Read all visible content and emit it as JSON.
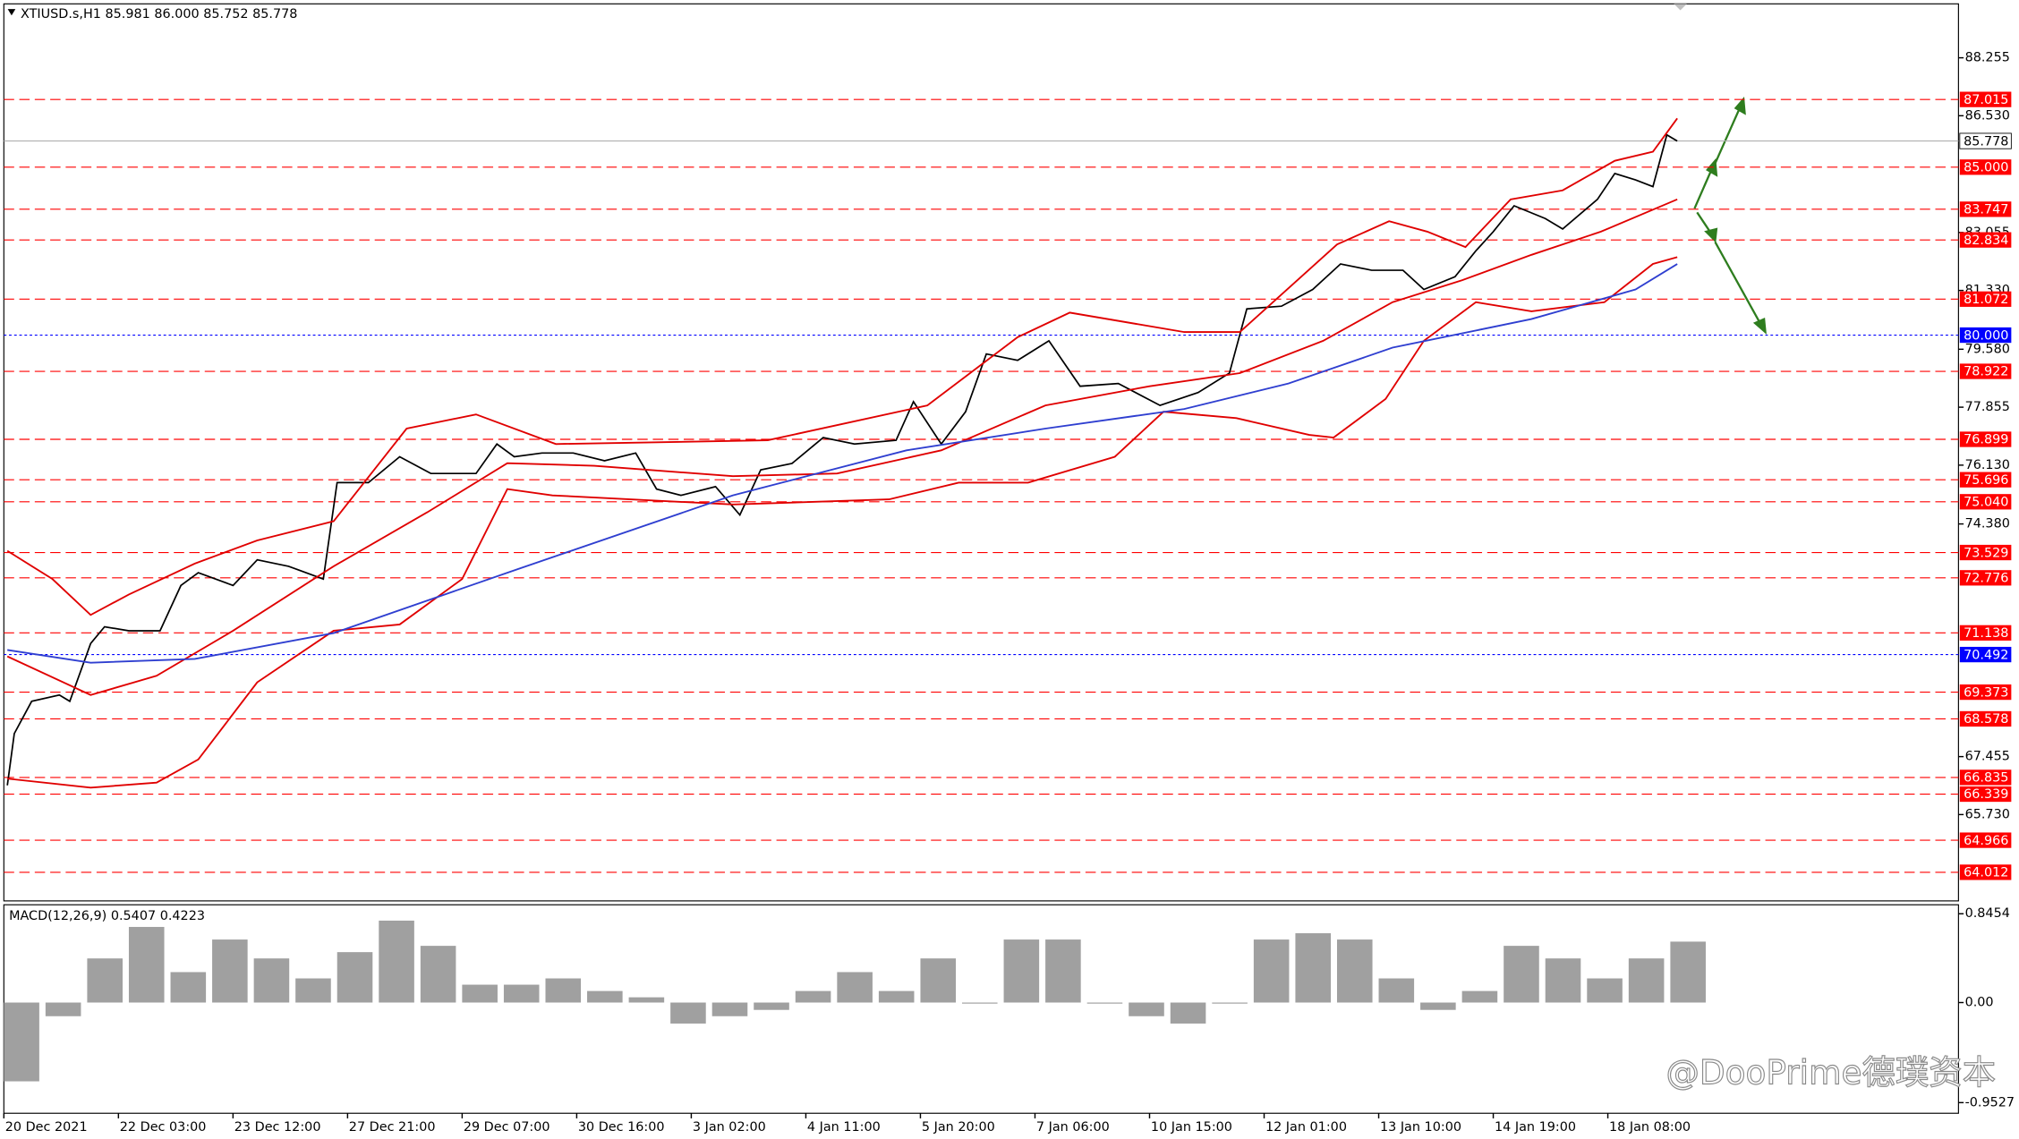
{
  "chart_data": [
    {
      "type": "line",
      "title": "XTIUSD.s,H1  85.981 86.000 85.752 85.778",
      "xlim": [
        0,
        563
      ],
      "ylim": [
        63.16,
        89.86
      ],
      "xticks": [
        {
          "value": 0,
          "label": "20 Dec 2021"
        },
        {
          "value": 33,
          "label": "22 Dec 03:00"
        },
        {
          "value": 66,
          "label": "23 Dec 12:00"
        },
        {
          "value": 99,
          "label": "27 Dec 21:00"
        },
        {
          "value": 132,
          "label": "29 Dec 07:00"
        },
        {
          "value": 165,
          "label": "30 Dec 16:00"
        },
        {
          "value": 198,
          "label": "3 Jan 02:00"
        },
        {
          "value": 231,
          "label": "4 Jan 11:00"
        },
        {
          "value": 264,
          "label": "5 Jan 20:00"
        },
        {
          "value": 297,
          "label": "7 Jan 06:00"
        },
        {
          "value": 330,
          "label": "10 Jan 15:00"
        },
        {
          "value": 363,
          "label": "12 Jan 01:00"
        },
        {
          "value": 396,
          "label": "13 Jan 10:00"
        },
        {
          "value": 429,
          "label": "14 Jan 19:00"
        },
        {
          "value": 462,
          "label": "18 Jan 08:00"
        }
      ],
      "yticks": [
        88.255,
        {
          "value": 86.53,
          "label": "86.530"
        },
        83.055,
        {
          "value": 81.33,
          "label": "81.330"
        },
        {
          "value": 79.58,
          "label": "79.580"
        },
        77.855,
        {
          "value": 76.13,
          "label": "76.130"
        },
        {
          "value": 74.38,
          "label": "74.380"
        },
        67.455,
        {
          "value": 65.73,
          "label": "65.730"
        }
      ],
      "levels": [
        87.015,
        {
          "value": 85,
          "label": "85.000"
        },
        83.747,
        82.834,
        81.072,
        78.922,
        76.899,
        75.696,
        {
          "value": 75.04,
          "label": "75.040"
        },
        73.529,
        72.776,
        71.138,
        69.373,
        68.578,
        66.835,
        66.339,
        64.966,
        64.012
      ],
      "level_color": "#ff0000",
      "blue_levels": [
        {
          "value": 80,
          "label": "80.000"
        },
        70.492
      ],
      "blue_level_color": "#0000ff",
      "last_price": 85.778,
      "series": [
        {
          "color": "#000000",
          "x": [
            1,
            3,
            8,
            16,
            19,
            25,
            29,
            36,
            45,
            51,
            56,
            66,
            73,
            82,
            92,
            96,
            105,
            114,
            123,
            136,
            142,
            147,
            155,
            164,
            173,
            182,
            188,
            195,
            205,
            212,
            218,
            227,
            236,
            245,
            257,
            262,
            270,
            277,
            283,
            292,
            301,
            310,
            321,
            333,
            344,
            353,
            358,
            368,
            377,
            385,
            394,
            403,
            409,
            418,
            424,
            429,
            435,
            444,
            449,
            459,
            464,
            470,
            475,
            479,
            482
          ],
          "values": [
            66.6,
            68.14,
            69.1,
            69.29,
            69.1,
            70.82,
            71.32,
            71.2,
            71.2,
            72.55,
            72.93,
            72.55,
            73.31,
            73.12,
            72.74,
            75.61,
            75.61,
            76.38,
            75.88,
            75.88,
            76.76,
            76.38,
            76.49,
            76.49,
            76.26,
            76.49,
            75.42,
            75.23,
            75.49,
            74.65,
            75.99,
            76.18,
            76.95,
            76.76,
            76.87,
            78.02,
            76.76,
            77.72,
            79.44,
            79.25,
            79.83,
            78.48,
            78.56,
            77.91,
            78.29,
            78.87,
            80.78,
            80.86,
            81.36,
            82.12,
            81.93,
            81.93,
            81.36,
            81.74,
            82.51,
            83.08,
            83.85,
            83.47,
            83.16,
            84.04,
            84.81,
            84.62,
            84.42,
            85.96,
            85.778
          ]
        },
        {
          "color": "#e00000",
          "x": [
            1,
            14,
            25,
            36,
            55,
            73,
            95,
            116,
            136,
            159,
            220,
            266,
            292,
            307,
            340,
            356,
            384,
            399,
            410,
            421,
            434,
            449,
            464,
            475,
            482
          ],
          "values": [
            73.58,
            72.74,
            71.67,
            72.28,
            73.2,
            73.89,
            74.46,
            77.22,
            77.64,
            76.76,
            76.87,
            77.91,
            79.94,
            80.67,
            80.09,
            80.09,
            82.7,
            83.39,
            83.08,
            82.62,
            84.04,
            84.31,
            85.19,
            85.46,
            86.45
          ]
        },
        {
          "color": "#e00000",
          "x": [
            1,
            25,
            44,
            66,
            95,
            122,
            145,
            170,
            210,
            240,
            270,
            300,
            330,
            356,
            380,
            400,
            420,
            440,
            460,
            482
          ],
          "values": [
            70.44,
            69.29,
            69.86,
            71.2,
            73.12,
            74.73,
            76.19,
            76.11,
            75.8,
            75.88,
            76.57,
            77.91,
            78.48,
            78.87,
            79.83,
            80.98,
            81.63,
            82.39,
            83.08,
            84.04
          ]
        },
        {
          "color": "#e00000",
          "x": [
            1,
            25,
            44,
            56,
            73,
            95,
            114,
            132,
            145,
            158,
            210,
            255,
            275,
            295,
            320,
            334,
            355,
            376,
            383,
            398,
            409,
            424,
            440,
            461,
            475,
            482
          ],
          "values": [
            66.8,
            66.53,
            66.68,
            67.37,
            69.67,
            71.2,
            71.39,
            72.74,
            75.42,
            75.23,
            74.96,
            75.11,
            75.61,
            75.61,
            76.38,
            77.72,
            77.53,
            77.03,
            76.95,
            78.1,
            79.83,
            80.98,
            80.71,
            80.98,
            82.12,
            82.32
          ]
        },
        {
          "color": "#2f3fd0",
          "x": [
            1,
            25,
            55,
            95,
            145,
            210,
            260,
            300,
            340,
            370,
            400,
            440,
            470,
            482
          ],
          "values": [
            70.63,
            70.25,
            70.36,
            71.13,
            72.93,
            75.23,
            76.57,
            77.22,
            77.8,
            78.56,
            79.63,
            80.48,
            81.36,
            82.12
          ]
        }
      ]
    },
    {
      "type": "bar",
      "title": "MACD(12,26,9) 0.5407 0.4223",
      "color": "#a0a0a0",
      "xlim": [
        0,
        563
      ],
      "ylim": [
        -1.054,
        0.931
      ],
      "yticks": [
        0.8454,
        {
          "value": 0,
          "label": "0.00"
        },
        -0.9527
      ],
      "x": [
        0,
        12,
        24,
        36,
        48,
        60,
        72,
        84,
        96,
        108,
        120,
        132,
        144,
        156,
        168,
        180,
        192,
        204,
        216,
        228,
        240,
        252,
        264,
        276,
        288,
        300,
        312,
        324,
        336,
        348,
        360,
        372,
        384,
        396,
        408,
        420,
        432,
        444,
        456,
        468,
        480
      ],
      "values": [
        -0.75,
        -0.13,
        0.42,
        0.72,
        0.29,
        0.6,
        0.42,
        0.23,
        0.48,
        0.78,
        0.54,
        0.17,
        0.17,
        0.23,
        0.11,
        0.05,
        -0.2,
        -0.13,
        -0.07,
        0.11,
        0.29,
        0.11,
        0.42,
        -0.01,
        0.6,
        0.6,
        -0.01,
        -0.13,
        -0.2,
        -0.01,
        0.6,
        0.66,
        0.6,
        0.23,
        -0.07,
        0.11,
        0.54,
        0.42,
        0.23,
        0.42,
        0.58
      ]
    }
  ],
  "watermark": "@DooPrime德璞资本"
}
